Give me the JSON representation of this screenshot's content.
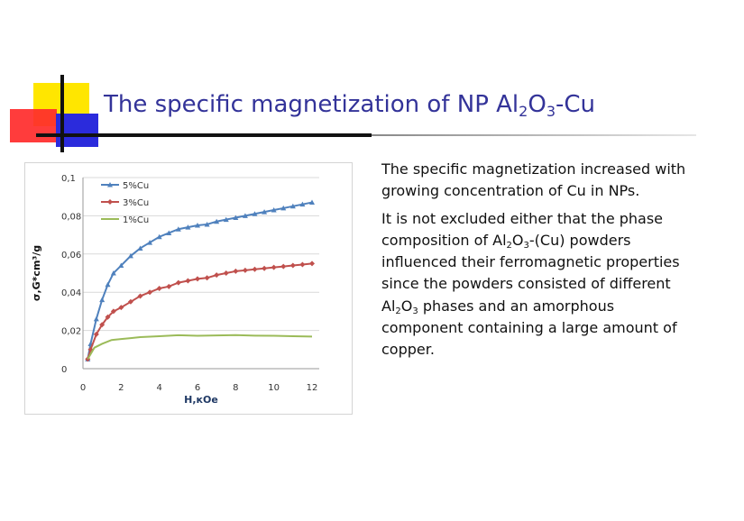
{
  "slide": {
    "title": {
      "parts": [
        "The specific magnetization of NP Al",
        "2",
        "O",
        "3",
        "-Cu"
      ]
    },
    "body": {
      "p1": "The specific magnetization increased with growing concentration of Cu in NPs.",
      "p2_parts": [
        "It is not excluded either that the phase composition of Al",
        "2",
        "O",
        "3",
        "-(Cu) powders influenced their ferromagnetic properties since the powders consisted of different Al",
        "2",
        "O",
        "3",
        " phases and an amorphous component containing a large amount of copper."
      ]
    },
    "colors": {
      "title": "#333399",
      "deco_yellow": "#ffe600",
      "deco_red": "#ff2b2b",
      "deco_blue": "#2b2bdc"
    }
  },
  "chart_data": {
    "type": "line",
    "xlabel": "H,кОе",
    "ylabel": "σ,G*cm³/g",
    "xlim": [
      0,
      12
    ],
    "ylim": [
      0,
      0.1
    ],
    "x_ticks": [
      "0",
      "2",
      "4",
      "6",
      "8",
      "10",
      "12"
    ],
    "y_ticks": [
      "0",
      "0,02",
      "0,04",
      "0,06",
      "0,08",
      "0,1"
    ],
    "grid": "horizontal",
    "legend_position": "top-left",
    "series": [
      {
        "name": "5%Cu",
        "color": "#4f81bd",
        "marker": "triangle",
        "x": [
          0.25,
          0.4,
          0.7,
          1,
          1.3,
          1.6,
          2,
          2.5,
          3,
          3.5,
          4,
          4.5,
          5,
          5.5,
          6,
          6.5,
          7,
          7.5,
          8,
          8.5,
          9,
          9.5,
          10,
          10.5,
          11,
          11.5,
          12
        ],
        "y": [
          0.005,
          0.013,
          0.026,
          0.036,
          0.044,
          0.05,
          0.054,
          0.059,
          0.063,
          0.066,
          0.069,
          0.071,
          0.073,
          0.074,
          0.075,
          0.0755,
          0.077,
          0.078,
          0.079,
          0.08,
          0.081,
          0.082,
          0.083,
          0.084,
          0.085,
          0.086,
          0.087
        ]
      },
      {
        "name": "3%Cu",
        "color": "#c0504d",
        "marker": "diamond",
        "x": [
          0.25,
          0.4,
          0.7,
          1,
          1.3,
          1.6,
          2,
          2.5,
          3,
          3.5,
          4,
          4.5,
          5,
          5.5,
          6,
          6.5,
          7,
          7.5,
          8,
          8.5,
          9,
          9.5,
          10,
          10.5,
          11,
          11.5,
          12
        ],
        "y": [
          0.005,
          0.01,
          0.018,
          0.023,
          0.027,
          0.03,
          0.032,
          0.035,
          0.038,
          0.04,
          0.042,
          0.043,
          0.045,
          0.046,
          0.047,
          0.0475,
          0.049,
          0.05,
          0.051,
          0.0515,
          0.052,
          0.0525,
          0.053,
          0.0535,
          0.054,
          0.0545,
          0.055
        ]
      },
      {
        "name": "1%Cu",
        "color": "#9bbb59",
        "marker": "none",
        "x": [
          0.25,
          0.6,
          1,
          1.5,
          2,
          2.5,
          3,
          4,
          5,
          6,
          7,
          8,
          9,
          10,
          11,
          12
        ],
        "y": [
          0.005,
          0.011,
          0.013,
          0.015,
          0.0155,
          0.016,
          0.0165,
          0.017,
          0.0175,
          0.0172,
          0.0174,
          0.0176,
          0.0173,
          0.0172,
          0.017,
          0.0168
        ]
      }
    ]
  }
}
